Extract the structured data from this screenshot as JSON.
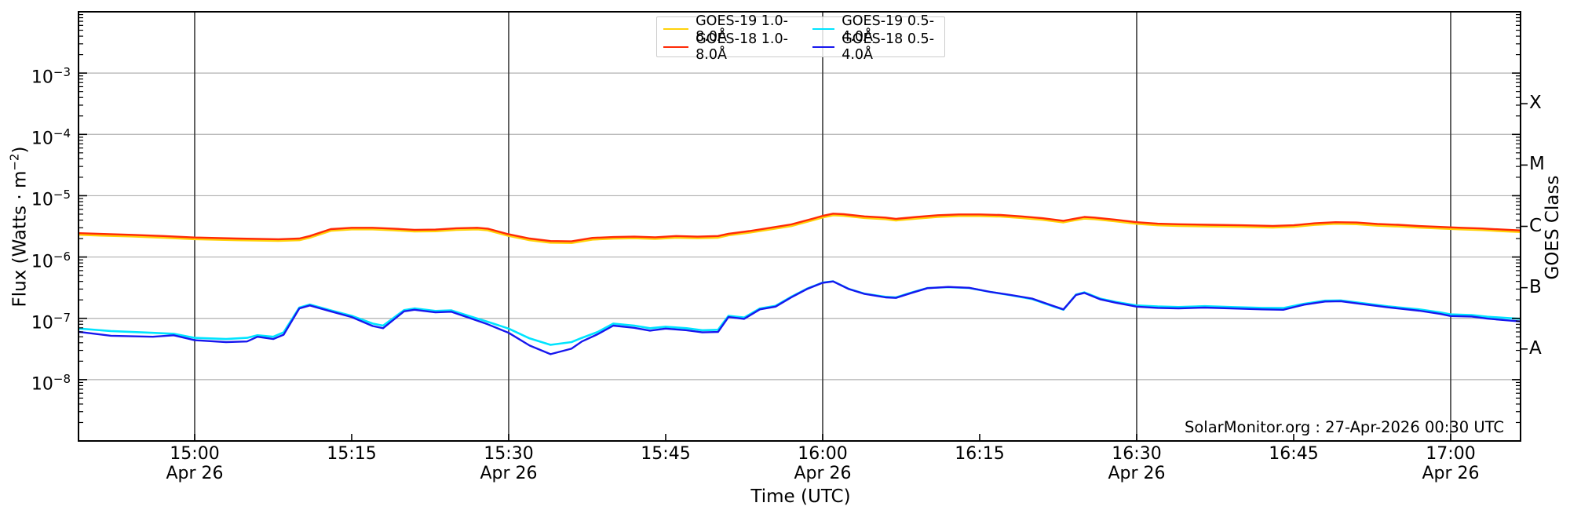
{
  "figure": {
    "annotation": "SolarMonitor.org : 27-Apr-2026 00:30 UTC",
    "x_axis": {
      "title": "Time (UTC)",
      "ticks": [
        {
          "t": 900,
          "label": "15:00",
          "date": "Apr 26"
        },
        {
          "t": 915,
          "label": "15:15",
          "date": ""
        },
        {
          "t": 930,
          "label": "15:30",
          "date": "Apr 26"
        },
        {
          "t": 945,
          "label": "15:45",
          "date": ""
        },
        {
          "t": 960,
          "label": "16:00",
          "date": "Apr 26"
        },
        {
          "t": 975,
          "label": "16:15",
          "date": ""
        },
        {
          "t": 990,
          "label": "16:30",
          "date": "Apr 26"
        },
        {
          "t": 1005,
          "label": "16:45",
          "date": ""
        },
        {
          "t": 1020,
          "label": "17:00",
          "date": "Apr 26"
        }
      ],
      "gridline_times": [
        900,
        930,
        960,
        990,
        1020
      ]
    },
    "y_axis": {
      "title_prefix": "Flux (Watts · m",
      "title_sup": "−2",
      "title_suffix": ")",
      "tick_exponents": [
        -3,
        -4,
        -5,
        -6,
        -7,
        -8
      ],
      "range_exponents": [
        -9,
        -2
      ]
    },
    "right_axis": {
      "title": "GOES Class",
      "class_labels": [
        {
          "label": "X",
          "mid_exponent": -3.5
        },
        {
          "label": "M",
          "mid_exponent": -4.5
        },
        {
          "label": "C",
          "mid_exponent": -5.5
        },
        {
          "label": "B",
          "mid_exponent": -6.5
        },
        {
          "label": "A",
          "mid_exponent": -7.5
        }
      ]
    },
    "colors": {
      "h_grid": "#b0b0b0",
      "v_grid": "#3a3a3a",
      "frame": "#000000",
      "background": "#ffffff"
    }
  },
  "legend": {
    "entries": [
      {
        "label": "GOES-19 1.0-8.0Å",
        "color": "#ffd20a"
      },
      {
        "label": "GOES-19 0.5-4.0Å",
        "color": "#00e4ff"
      },
      {
        "label": "GOES-18 1.0-8.0Å",
        "color": "#ff2a06"
      },
      {
        "label": "GOES-18 0.5-4.0Å",
        "color": "#1717ee"
      }
    ]
  },
  "chart_data": {
    "type": "line",
    "title": "",
    "xlabel": "Time (UTC)",
    "ylabel": "Flux (Watts · m−2)",
    "y_scale": "log",
    "y_range": [
      1e-09,
      0.01
    ],
    "x_unit": "minutes since 00:00 UTC on 26-Apr-2026",
    "x_range_minutes": [
      889,
      1027
    ],
    "x_visible_span": [
      "14:49",
      "17:07"
    ],
    "grid": {
      "horizontal": "light at each decade",
      "vertical": "dark every 30 min"
    },
    "legend_position": "top center, 2 columns",
    "series": [
      {
        "name": "GOES-19 1.0-8.0Å",
        "color": "#ffd20a",
        "width": 3.2,
        "points_scale_of": "GOES-18 1.0-8.0Å",
        "scale": 0.95,
        "note": "hidden almost entirely beneath GOES-18 1.0-8.0Å red curve"
      },
      {
        "name": "GOES-18 1.0-8.0Å",
        "color": "#ff2a06",
        "width": 2.4,
        "points": [
          [
            889,
            2.45e-06
          ],
          [
            891,
            2.38e-06
          ],
          [
            894,
            2.3e-06
          ],
          [
            897,
            2.2e-06
          ],
          [
            900,
            2.08e-06
          ],
          [
            904,
            2e-06
          ],
          [
            908,
            1.95e-06
          ],
          [
            910,
            2e-06
          ],
          [
            911,
            2.2e-06
          ],
          [
            913,
            2.85e-06
          ],
          [
            915,
            3e-06
          ],
          [
            917,
            3e-06
          ],
          [
            919,
            2.9e-06
          ],
          [
            921,
            2.78e-06
          ],
          [
            923,
            2.8e-06
          ],
          [
            925,
            2.95e-06
          ],
          [
            927,
            3e-06
          ],
          [
            928,
            2.9e-06
          ],
          [
            930,
            2.35e-06
          ],
          [
            932,
            2e-06
          ],
          [
            934,
            1.82e-06
          ],
          [
            936,
            1.8e-06
          ],
          [
            938,
            2.05e-06
          ],
          [
            940,
            2.12e-06
          ],
          [
            942,
            2.15e-06
          ],
          [
            944,
            2.1e-06
          ],
          [
            946,
            2.2e-06
          ],
          [
            948,
            2.15e-06
          ],
          [
            950,
            2.2e-06
          ],
          [
            951,
            2.4e-06
          ],
          [
            953,
            2.65e-06
          ],
          [
            955,
            3e-06
          ],
          [
            957,
            3.4e-06
          ],
          [
            959,
            4.2e-06
          ],
          [
            960,
            4.7e-06
          ],
          [
            961,
            5.1e-06
          ],
          [
            962,
            5e-06
          ],
          [
            964,
            4.6e-06
          ],
          [
            966,
            4.4e-06
          ],
          [
            967,
            4.2e-06
          ],
          [
            969,
            4.5e-06
          ],
          [
            971,
            4.8e-06
          ],
          [
            973,
            4.95e-06
          ],
          [
            975,
            4.95e-06
          ],
          [
            977,
            4.85e-06
          ],
          [
            979,
            4.6e-06
          ],
          [
            981,
            4.3e-06
          ],
          [
            983,
            3.9e-06
          ],
          [
            984,
            4.2e-06
          ],
          [
            985,
            4.5e-06
          ],
          [
            986,
            4.4e-06
          ],
          [
            988,
            4.05e-06
          ],
          [
            990,
            3.7e-06
          ],
          [
            992,
            3.5e-06
          ],
          [
            994,
            3.42e-06
          ],
          [
            997,
            3.35e-06
          ],
          [
            1000,
            3.3e-06
          ],
          [
            1003,
            3.22e-06
          ],
          [
            1005,
            3.3e-06
          ],
          [
            1007,
            3.55e-06
          ],
          [
            1009,
            3.7e-06
          ],
          [
            1011,
            3.65e-06
          ],
          [
            1013,
            3.45e-06
          ],
          [
            1015,
            3.35e-06
          ],
          [
            1017,
            3.2e-06
          ],
          [
            1019,
            3.1e-06
          ],
          [
            1021,
            3e-06
          ],
          [
            1023,
            2.92e-06
          ],
          [
            1025,
            2.8e-06
          ],
          [
            1027,
            2.7e-06
          ]
        ]
      },
      {
        "name": "GOES-19 0.5-4.0Å",
        "color": "#00e4ff",
        "width": 2.6,
        "points": [
          [
            889,
            6.8e-08
          ],
          [
            892,
            6.2e-08
          ],
          [
            896,
            5.8e-08
          ],
          [
            898,
            5.6e-08
          ],
          [
            900,
            4.8e-08
          ],
          [
            903,
            4.6e-08
          ],
          [
            905,
            4.8e-08
          ],
          [
            906,
            5.3e-08
          ],
          [
            907.5,
            5e-08
          ],
          [
            908.5,
            5.9e-08
          ],
          [
            910,
            1.5e-07
          ],
          [
            911,
            1.68e-07
          ],
          [
            913,
            1.35e-07
          ],
          [
            915,
            1.1e-07
          ],
          [
            917,
            8.2e-08
          ],
          [
            918,
            7.6e-08
          ],
          [
            920,
            1.36e-07
          ],
          [
            921,
            1.45e-07
          ],
          [
            923,
            1.32e-07
          ],
          [
            924.5,
            1.35e-07
          ],
          [
            926,
            1.12e-07
          ],
          [
            928,
            8.8e-08
          ],
          [
            930,
            6.8e-08
          ],
          [
            932,
            4.7e-08
          ],
          [
            934,
            3.7e-08
          ],
          [
            936,
            4.1e-08
          ],
          [
            937,
            4.8e-08
          ],
          [
            938.5,
            6e-08
          ],
          [
            940,
            8.2e-08
          ],
          [
            942,
            7.6e-08
          ],
          [
            943.5,
            6.9e-08
          ],
          [
            945,
            7.3e-08
          ],
          [
            947,
            6.9e-08
          ],
          [
            948.5,
            6.4e-08
          ],
          [
            950,
            6.5e-08
          ],
          [
            951,
            1.1e-07
          ],
          [
            952.5,
            1.03e-07
          ],
          [
            954,
            1.45e-07
          ],
          [
            955.5,
            1.6e-07
          ],
          [
            957,
            2.25e-07
          ],
          [
            958.5,
            3.05e-07
          ],
          [
            960,
            3.82e-07
          ],
          [
            961,
            4.02e-07
          ],
          [
            962.5,
            3.02e-07
          ],
          [
            964,
            2.52e-07
          ],
          [
            966,
            2.24e-07
          ],
          [
            967,
            2.2e-07
          ],
          [
            968.5,
            2.64e-07
          ],
          [
            970,
            3.12e-07
          ],
          [
            972,
            3.22e-07
          ],
          [
            974,
            3.12e-07
          ],
          [
            976,
            2.7e-07
          ],
          [
            978,
            2.37e-07
          ],
          [
            980,
            2.06e-07
          ],
          [
            982,
            1.57e-07
          ],
          [
            983,
            1.38e-07
          ],
          [
            984.2,
            2.44e-07
          ],
          [
            985,
            2.65e-07
          ],
          [
            986.5,
            2.1e-07
          ],
          [
            988,
            1.85e-07
          ],
          [
            990,
            1.62e-07
          ],
          [
            992,
            1.56e-07
          ],
          [
            994,
            1.53e-07
          ],
          [
            996.5,
            1.58e-07
          ],
          [
            999,
            1.53e-07
          ],
          [
            1002,
            1.48e-07
          ],
          [
            1004,
            1.47e-07
          ],
          [
            1006,
            1.73e-07
          ],
          [
            1008,
            1.94e-07
          ],
          [
            1009.5,
            1.96e-07
          ],
          [
            1012,
            1.73e-07
          ],
          [
            1014,
            1.57e-07
          ],
          [
            1017,
            1.4e-07
          ],
          [
            1019,
            1.25e-07
          ],
          [
            1020,
            1.16e-07
          ],
          [
            1022,
            1.13e-07
          ],
          [
            1023.5,
            1.06e-07
          ],
          [
            1027,
            9.7e-08
          ]
        ]
      },
      {
        "name": "GOES-18 0.5-4.0Å",
        "color": "#1717ee",
        "width": 2.4,
        "points": [
          [
            889,
            6e-08
          ],
          [
            892,
            5.2e-08
          ],
          [
            896,
            5e-08
          ],
          [
            898,
            5.3e-08
          ],
          [
            900,
            4.4e-08
          ],
          [
            903,
            4.1e-08
          ],
          [
            905,
            4.2e-08
          ],
          [
            906,
            5e-08
          ],
          [
            907.5,
            4.6e-08
          ],
          [
            908.5,
            5.4e-08
          ],
          [
            910,
            1.45e-07
          ],
          [
            911,
            1.62e-07
          ],
          [
            913,
            1.3e-07
          ],
          [
            915,
            1.05e-07
          ],
          [
            917,
            7.5e-08
          ],
          [
            918,
            6.9e-08
          ],
          [
            920,
            1.3e-07
          ],
          [
            921,
            1.38e-07
          ],
          [
            923,
            1.25e-07
          ],
          [
            924.5,
            1.28e-07
          ],
          [
            926,
            1.05e-07
          ],
          [
            928,
            8e-08
          ],
          [
            930,
            5.8e-08
          ],
          [
            932,
            3.6e-08
          ],
          [
            934,
            2.6e-08
          ],
          [
            936,
            3.2e-08
          ],
          [
            937,
            4.2e-08
          ],
          [
            938.5,
            5.5e-08
          ],
          [
            940,
            7.6e-08
          ],
          [
            942,
            7e-08
          ],
          [
            943.5,
            6.3e-08
          ],
          [
            945,
            6.8e-08
          ],
          [
            947,
            6.4e-08
          ],
          [
            948.5,
            5.9e-08
          ],
          [
            950,
            6e-08
          ],
          [
            951,
            1.05e-07
          ],
          [
            952.5,
            9.8e-08
          ],
          [
            954,
            1.4e-07
          ],
          [
            955.5,
            1.55e-07
          ],
          [
            957,
            2.2e-07
          ],
          [
            958.5,
            3e-07
          ],
          [
            960,
            3.8e-07
          ],
          [
            961,
            4e-07
          ],
          [
            962.5,
            3e-07
          ],
          [
            964,
            2.5e-07
          ],
          [
            966,
            2.2e-07
          ],
          [
            967,
            2.15e-07
          ],
          [
            968.5,
            2.6e-07
          ],
          [
            970,
            3.1e-07
          ],
          [
            972,
            3.25e-07
          ],
          [
            974,
            3.15e-07
          ],
          [
            976,
            2.7e-07
          ],
          [
            978,
            2.4e-07
          ],
          [
            980,
            2.1e-07
          ],
          [
            982,
            1.6e-07
          ],
          [
            983,
            1.4e-07
          ],
          [
            984.2,
            2.4e-07
          ],
          [
            985,
            2.6e-07
          ],
          [
            986.5,
            2.05e-07
          ],
          [
            988,
            1.8e-07
          ],
          [
            990,
            1.55e-07
          ],
          [
            992,
            1.48e-07
          ],
          [
            994,
            1.45e-07
          ],
          [
            996.5,
            1.5e-07
          ],
          [
            999,
            1.45e-07
          ],
          [
            1002,
            1.4e-07
          ],
          [
            1004,
            1.38e-07
          ],
          [
            1006,
            1.67e-07
          ],
          [
            1008,
            1.88e-07
          ],
          [
            1009.5,
            1.9e-07
          ],
          [
            1012,
            1.67e-07
          ],
          [
            1014,
            1.51e-07
          ],
          [
            1017,
            1.33e-07
          ],
          [
            1019,
            1.18e-07
          ],
          [
            1020,
            1.09e-07
          ],
          [
            1022,
            1.07e-07
          ],
          [
            1023.5,
            9.9e-08
          ],
          [
            1027,
            8.8e-08
          ]
        ]
      }
    ]
  }
}
